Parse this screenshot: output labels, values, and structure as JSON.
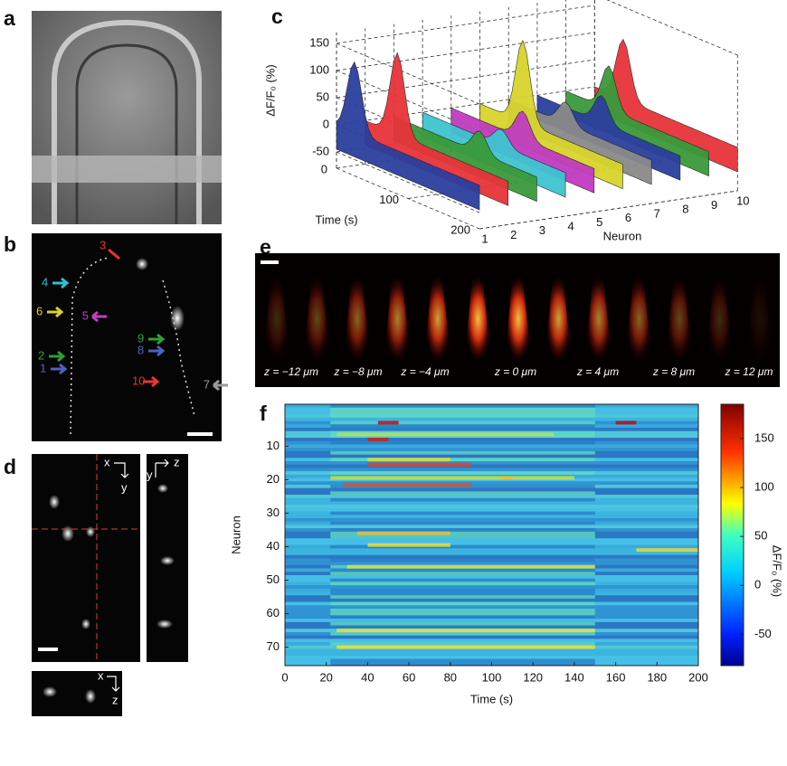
{
  "panel_labels": {
    "a": "a",
    "b": "b",
    "c": "c",
    "d": "d",
    "e": "e",
    "f": "f"
  },
  "panel_b": {
    "neuron_labels": [
      "1",
      "2",
      "3",
      "4",
      "5",
      "6",
      "7",
      "8",
      "9",
      "10"
    ]
  },
  "panel_c": {
    "y_label": "ΔF/F₀ (%)",
    "yticks": [
      150,
      100,
      50,
      0,
      -50
    ],
    "time_label": "Time (s)",
    "time_ticks": [
      0,
      100,
      200
    ],
    "neuron_label": "Neuron",
    "neuron_ticks": [
      1,
      2,
      3,
      4,
      5,
      6,
      7,
      8,
      9,
      10
    ],
    "traces": [
      {
        "color": "#2b3f9e",
        "peak_value": 130,
        "peak_time": 25
      },
      {
        "color": "#e8333a",
        "peak_value": 150,
        "peak_time": 45
      },
      {
        "color": "#3a9a3a",
        "peak_value": 40,
        "peak_time": 120
      },
      {
        "color": "#3fc4d0",
        "peak_value": 30,
        "peak_time": 110
      },
      {
        "color": "#c03cc0",
        "peak_value": 50,
        "peak_time": 100
      },
      {
        "color": "#d8d42c",
        "peak_value": 150,
        "peak_time": 60
      },
      {
        "color": "#8a8a8a",
        "peak_value": 40,
        "peak_time": 80
      },
      {
        "color": "#2b3f9e",
        "peak_value": 50,
        "peak_time": 90
      },
      {
        "color": "#3a9a3a",
        "peak_value": 80,
        "peak_time": 60
      },
      {
        "color": "#e8333a",
        "peak_value": 110,
        "peak_time": 40
      }
    ]
  },
  "panel_d": {
    "top_axes": [
      "x",
      "y"
    ],
    "side_axes": [
      "z",
      "y"
    ],
    "bottom_axes": [
      "x",
      "z"
    ]
  },
  "panel_e": {
    "depth_labels": [
      "z = −12 μm",
      "z = −8 μm",
      "z = −4 μm",
      "z = 0 μm",
      "z = 4 μm",
      "z = 8 μm",
      "z = 12 μm"
    ]
  },
  "panel_f": {
    "x_label": "Time (s)",
    "y_label": "Neuron",
    "xlim": [
      0,
      200
    ],
    "xticks": [
      0,
      20,
      40,
      60,
      80,
      100,
      120,
      140,
      160,
      180,
      200
    ],
    "ylim": [
      -2.5,
      75.5
    ],
    "yticks": [
      10,
      20,
      30,
      40,
      50,
      60,
      70
    ],
    "colorbar_label": "ΔF/F₀ (%)",
    "colorbar_lim": [
      -82,
      185
    ],
    "colorbar_ticks": [
      150,
      100,
      50,
      0,
      -50
    ]
  }
}
